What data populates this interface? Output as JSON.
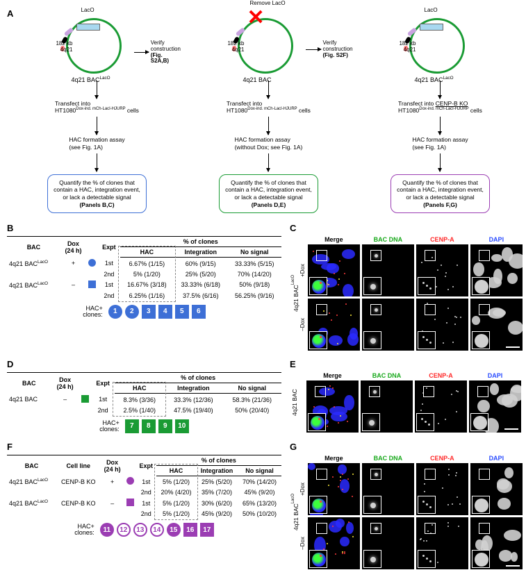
{
  "panelA": {
    "label": "A",
    "cols": [
      {
        "plasmid": {
          "color": "#1a9b34",
          "size_l1": "182 kb",
          "size_l2": "4q21",
          "name": "4q21 BAC",
          "name_sup": "LacO",
          "laco_label": "LacO",
          "show_laco": true,
          "show_x": false
        },
        "verify": {
          "l1": "Verify",
          "l2": "construction",
          "l3": "(Fig. S2A,B)"
        },
        "steps": [
          {
            "l1": "Transfect into",
            "l2": "HT1080",
            "l2sup": "Dox-ind. mCh-LacI-HJURP",
            "l2tail": " cells"
          },
          {
            "l1": "HAC formation assay",
            "l2": "(see Fig. 1A)"
          }
        ],
        "box": {
          "color": "#3d6fd6",
          "l1": "Quantify the % of clones that",
          "l2": "contain a HAC, integration event,",
          "l3": "or lack a detectable signal",
          "l4": "(Panels B,C)"
        }
      },
      {
        "plasmid": {
          "color": "#1a9b34",
          "size_l1": "182 kb",
          "size_l2": "4q21",
          "name": "4q21 BAC",
          "name_sup": "",
          "laco_label": "",
          "show_laco": false,
          "show_x": true,
          "remove_label": "Remove LacO"
        },
        "verify": {
          "l1": "Verify",
          "l2": "construction",
          "l3": "(Fig. S2F)"
        },
        "steps": [
          {
            "l1": "Transfect into",
            "l2": "HT1080",
            "l2sup": "Dox-ind. mCh-LacI-HJURP",
            "l2tail": " cells"
          },
          {
            "l1": "HAC formation assay",
            "l2": "(without Dox; see Fig. 1A)"
          }
        ],
        "box": {
          "color": "#1a9b34",
          "l1": "Quantify the % of clones that",
          "l2": "contain a HAC, integration event,",
          "l3": "or lack a detectable signal",
          "l4": "(Panels D,E)"
        }
      },
      {
        "plasmid": {
          "color": "#1a9b34",
          "size_l1": "182 kb",
          "size_l2": "4q21",
          "name": "4q21 BAC",
          "name_sup": "LacO",
          "laco_label": "LacO",
          "show_laco": true,
          "show_x": false
        },
        "steps": [
          {
            "l1": "Transfect into ",
            "l1u": "CENP-B KO",
            "l2": "HT1080",
            "l2sup": "Dox-ind. mCh-LacI-HJURP",
            "l2tail": " cells"
          },
          {
            "l1": "HAC formation assay",
            "l2": "(see Fig. 1A)"
          }
        ],
        "box": {
          "color": "#9b3db3",
          "l1": "Quantify the % of clones that",
          "l2": "contain a HAC, integration event,",
          "l3": "or lack a detectable signal",
          "l4": "(Panels F,G)"
        }
      }
    ]
  },
  "panelB": {
    "label": "B",
    "group_hdr": "% of clones",
    "cols": [
      "BAC",
      "",
      "Dox\n(24 h)",
      "",
      "Expt",
      "HAC",
      "Integration",
      "No signal"
    ],
    "cols_simple": {
      "c0": "BAC",
      "c1": "Dox",
      "c1b": "(24 h)",
      "c2": "Expt",
      "c3": "HAC",
      "c4": "Integration",
      "c5": "No signal"
    },
    "color": "#3d6fd6",
    "rows": [
      {
        "bac": "4q21 BAC",
        "sup": "LacO",
        "dox": "+",
        "shape": "circle",
        "expt": "1st",
        "hac": "6.67% (1/15)",
        "int": "60% (9/15)",
        "ns": "33.33% (5/15)"
      },
      {
        "bac": "",
        "sup": "",
        "dox": "",
        "shape": "",
        "expt": "2nd",
        "hac": "5% (1/20)",
        "int": "25% (5/20)",
        "ns": "70% (14/20)"
      },
      {
        "bac": "4q21 BAC",
        "sup": "LacO",
        "dox": "–",
        "shape": "square",
        "expt": "1st",
        "hac": "16.67% (3/18)",
        "int": "33.33% (6/18)",
        "ns": "50% (9/18)"
      },
      {
        "bac": "",
        "sup": "",
        "dox": "",
        "shape": "",
        "expt": "2nd",
        "hac": "6.25% (1/16)",
        "int": "37.5% (6/16)",
        "ns": "56.25% (9/16)"
      }
    ],
    "clones_label": "HAC+\nclones:",
    "clones_label_l1": "HAC+",
    "clones_label_l2": "clones:",
    "clones": [
      {
        "n": "1",
        "shape": "circle",
        "outline": false,
        "txt": "#fff"
      },
      {
        "n": "2",
        "shape": "circle",
        "outline": false,
        "txt": "#fff"
      },
      {
        "n": "3",
        "shape": "square",
        "outline": false,
        "txt": "#fff"
      },
      {
        "n": "4",
        "shape": "square",
        "outline": false,
        "txt": "#fff"
      },
      {
        "n": "5",
        "shape": "square",
        "outline": false,
        "txt": "#fff"
      },
      {
        "n": "6",
        "shape": "square",
        "outline": false,
        "txt": "#fff"
      }
    ]
  },
  "panelC": {
    "label": "C",
    "headers": [
      "Merge",
      "BAC DNA",
      "CENP-A",
      "DAPI"
    ],
    "header_colors": [
      "#000",
      "#17a81a",
      "#ff2a2a",
      "#2a4cff"
    ],
    "outer_label": "4q21 BAC",
    "outer_sup": "LacO",
    "rows": [
      {
        "lbl": "+Dox"
      },
      {
        "lbl": "–Dox"
      }
    ]
  },
  "panelD": {
    "label": "D",
    "color": "#1a9b34",
    "cols_simple": {
      "c0": "BAC",
      "c1": "Dox",
      "c1b": "(24 h)",
      "c2": "Expt",
      "c3": "HAC",
      "c4": "Integration",
      "c5": "No signal"
    },
    "group_hdr": "% of clones",
    "rows": [
      {
        "bac": "4q21 BAC",
        "sup": "",
        "dox": "–",
        "shape": "square",
        "expt": "1st",
        "hac": "8.3% (3/36)",
        "int": "33.3% (12/36)",
        "ns": "58.3% (21/36)"
      },
      {
        "bac": "",
        "sup": "",
        "dox": "",
        "shape": "",
        "expt": "2nd",
        "hac": "2.5% (1/40)",
        "int": "47.5% (19/40)",
        "ns": "50% (20/40)"
      }
    ],
    "clones_label_l1": "HAC+",
    "clones_label_l2": "clones:",
    "clones": [
      {
        "n": "7",
        "shape": "square",
        "txt": "#fff"
      },
      {
        "n": "8",
        "shape": "square",
        "txt": "#fff"
      },
      {
        "n": "9",
        "shape": "square",
        "txt": "#fff"
      },
      {
        "n": "10",
        "shape": "square",
        "txt": "#fff"
      }
    ]
  },
  "panelE": {
    "label": "E",
    "headers": [
      "Merge",
      "BAC DNA",
      "CENP-A",
      "DAPI"
    ],
    "header_colors": [
      "#000",
      "#17a81a",
      "#ff2a2a",
      "#2a4cff"
    ],
    "outer_label": "4q21 BAC",
    "rows": [
      {
        "lbl": ""
      }
    ]
  },
  "panelF": {
    "label": "F",
    "color": "#9b3db3",
    "cols_simple": {
      "c0": "BAC",
      "cCL": "Cell line",
      "c1": "Dox",
      "c1b": "(24 h)",
      "c2": "Expt",
      "c3": "HAC",
      "c4": "Integration",
      "c5": "No signal"
    },
    "group_hdr": "% of clones",
    "rows": [
      {
        "bac": "4q21 BAC",
        "sup": "LacO",
        "cl": "CENP-B KO",
        "dox": "+",
        "shape": "circle",
        "expt": "1st",
        "hac": "5% (1/20)",
        "int": "25% (5/20)",
        "ns": "70% (14/20)"
      },
      {
        "bac": "",
        "sup": "",
        "cl": "",
        "dox": "",
        "shape": "",
        "expt": "2nd",
        "hac": "20% (4/20)",
        "int": "35% (7/20)",
        "ns": "45% (9/20)"
      },
      {
        "bac": "4q21 BAC",
        "sup": "LacO",
        "cl": "CENP-B KO",
        "dox": "–",
        "shape": "square",
        "expt": "1st",
        "hac": "5% (1/20)",
        "int": "30% (6/20)",
        "ns": "65% (13/20)"
      },
      {
        "bac": "",
        "sup": "",
        "cl": "",
        "dox": "",
        "shape": "",
        "expt": "2nd",
        "hac": "5% (1/20)",
        "int": "45% (9/20)",
        "ns": "50% (10/20)"
      }
    ],
    "clones_label_l1": "HAC+",
    "clones_label_l2": "clones:",
    "clones": [
      {
        "n": "11",
        "shape": "circle",
        "outline": false,
        "txt": "#fff"
      },
      {
        "n": "12",
        "shape": "circle",
        "outline": true,
        "txt": "#9b3db3"
      },
      {
        "n": "13",
        "shape": "circle",
        "outline": true,
        "txt": "#9b3db3"
      },
      {
        "n": "14",
        "shape": "circle",
        "outline": true,
        "txt": "#9b3db3"
      },
      {
        "n": "15",
        "shape": "circle",
        "outline": false,
        "txt": "#fff"
      },
      {
        "n": "16",
        "shape": "square",
        "outline": false,
        "txt": "#fff"
      },
      {
        "n": "17",
        "shape": "square",
        "outline": false,
        "txt": "#fff"
      }
    ]
  },
  "panelG": {
    "label": "G",
    "headers": [
      "Merge",
      "BAC DNA",
      "CENP-A",
      "DAPI"
    ],
    "header_colors": [
      "#000",
      "#17a81a",
      "#ff2a2a",
      "#2a4cff"
    ],
    "outer_label": "4q21 BAC",
    "outer_sup": "LacO",
    "rows": [
      {
        "lbl": "+Dox"
      },
      {
        "lbl": "–Dox"
      }
    ]
  },
  "micro_colors": {
    "dapi": "#2a2aff",
    "bac": "#3cff3c",
    "cenpa": "#ff3c3c",
    "gray": "#d0d0d0"
  }
}
